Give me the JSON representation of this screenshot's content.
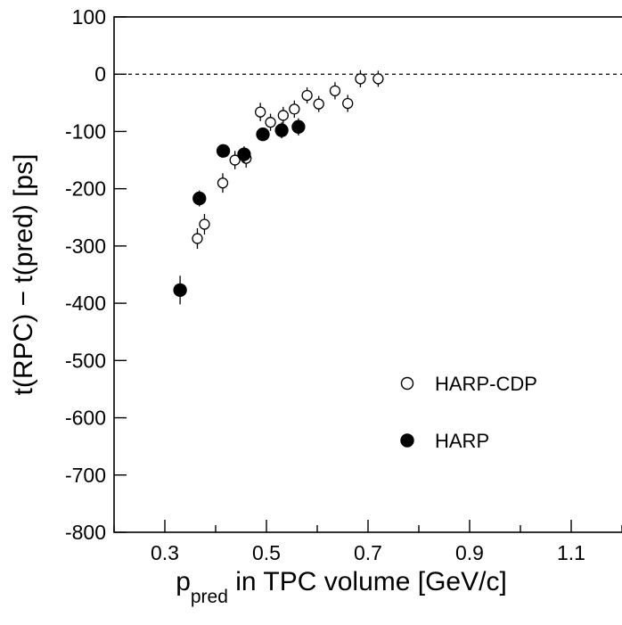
{
  "chart_data": {
    "type": "scatter",
    "xlabel": "p",
    "xlabel_sub": "pred",
    "xlabel_rest": " in TPC volume [GeV/c]",
    "ylabel": "t(RPC) − t(pred) [ps]",
    "xlim": [
      0.2,
      1.2
    ],
    "ylim": [
      -800,
      100
    ],
    "x_ticks": [
      0.3,
      0.5,
      0.7,
      0.9,
      1.1
    ],
    "x_tick_labels": [
      "0.3",
      "0.5",
      "0.7",
      "0.9",
      "1.1"
    ],
    "y_ticks": [
      100,
      0,
      -100,
      -200,
      -300,
      -400,
      -500,
      -600,
      -700,
      -800
    ],
    "y_tick_labels": [
      "100",
      "0",
      "-100",
      "-200",
      "-300",
      "-400",
      "-500",
      "-600",
      "-700",
      "-800"
    ],
    "reference_line": 0,
    "legend_placement": "bottom-right",
    "series": [
      {
        "name": "HARP-CDP",
        "marker": "open-circle",
        "points": [
          {
            "x": 0.364,
            "y": -287,
            "err": 18
          },
          {
            "x": 0.378,
            "y": -262,
            "err": 18
          },
          {
            "x": 0.414,
            "y": -190,
            "err": 17
          },
          {
            "x": 0.438,
            "y": -150,
            "err": 16
          },
          {
            "x": 0.46,
            "y": -147,
            "err": 16
          },
          {
            "x": 0.488,
            "y": -66,
            "err": 16
          },
          {
            "x": 0.508,
            "y": -84,
            "err": 15
          },
          {
            "x": 0.533,
            "y": -72,
            "err": 15
          },
          {
            "x": 0.555,
            "y": -61,
            "err": 15
          },
          {
            "x": 0.58,
            "y": -37,
            "err": 14
          },
          {
            "x": 0.603,
            "y": -52,
            "err": 14
          },
          {
            "x": 0.635,
            "y": -29,
            "err": 15
          },
          {
            "x": 0.66,
            "y": -51,
            "err": 15
          },
          {
            "x": 0.685,
            "y": -8,
            "err": 15
          },
          {
            "x": 0.72,
            "y": -8,
            "err": 14
          }
        ]
      },
      {
        "name": "HARP",
        "marker": "filled-circle",
        "points": [
          {
            "x": 0.33,
            "y": -377,
            "err": 25
          },
          {
            "x": 0.368,
            "y": -217,
            "err": 14
          },
          {
            "x": 0.415,
            "y": -134,
            "err": 10
          },
          {
            "x": 0.456,
            "y": -140,
            "err": 14
          },
          {
            "x": 0.493,
            "y": -105,
            "err": 10
          },
          {
            "x": 0.53,
            "y": -98,
            "err": 14
          },
          {
            "x": 0.563,
            "y": -92,
            "err": 15
          }
        ]
      }
    ],
    "legend": [
      {
        "label": "HARP-CDP",
        "marker": "open-circle"
      },
      {
        "label": "HARP",
        "marker": "filled-circle"
      }
    ]
  }
}
